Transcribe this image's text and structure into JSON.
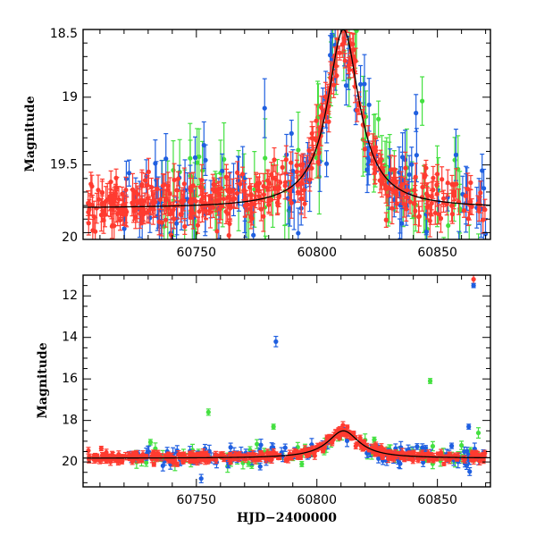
{
  "figure": {
    "colors": {
      "red": "#ff3b30",
      "blue": "#1f5fe0",
      "green": "#44e040",
      "model": "#000000"
    }
  },
  "chart_data": [
    {
      "type": "scatter",
      "panel": "top",
      "title": "",
      "xlabel": "",
      "ylabel": "Magnitude",
      "xlim": [
        60703,
        60872
      ],
      "ylim": [
        20.05,
        18.5
      ],
      "y_inverted": true,
      "xticks": [
        "60750",
        "60800",
        "60850"
      ],
      "yticks": [
        "18.5",
        "19",
        "19.5",
        "20"
      ],
      "series": [
        {
          "color": "red",
          "n_points": 420,
          "x_range": [
            60705,
            60870
          ],
          "baseline_mag": 19.8,
          "peak_mag": 18.55,
          "peak_x": 60811,
          "err": 0.08
        },
        {
          "color": "blue",
          "n_points": 120,
          "x_range": [
            60720,
            60870
          ],
          "baseline_mag": 19.8,
          "peak_mag": 18.55,
          "peak_x": 60811,
          "err": 0.15
        },
        {
          "color": "green",
          "n_points": 90,
          "x_range": [
            60725,
            60870
          ],
          "baseline_mag": 19.8,
          "peak_mag": 18.6,
          "peak_x": 60811,
          "err": 0.2
        }
      ],
      "model": {
        "type": "line",
        "baseline_mag": 19.82,
        "peak_mag": 18.5,
        "peak_x": 60811,
        "width": 8
      }
    },
    {
      "type": "scatter",
      "panel": "bottom",
      "title": "",
      "xlabel": "HJD−2400000",
      "ylabel": "Magnitude",
      "xlim": [
        60703,
        60872
      ],
      "ylim": [
        21.2,
        11.0
      ],
      "y_inverted": true,
      "xticks": [
        "60750",
        "60800",
        "60850"
      ],
      "yticks": [
        "12",
        "14",
        "16",
        "18",
        "20"
      ],
      "series": [
        {
          "color": "red",
          "n_points": 420,
          "x_range": [
            60705,
            60870
          ],
          "baseline_mag": 19.8,
          "peak_mag": 18.55,
          "peak_x": 60811,
          "err": 0.12
        },
        {
          "color": "blue",
          "n_points": 120,
          "x_range": [
            60720,
            60870
          ],
          "baseline_mag": 19.8,
          "peak_mag": 18.55,
          "peak_x": 60811,
          "err": 0.2
        },
        {
          "color": "green",
          "n_points": 90,
          "x_range": [
            60725,
            60870
          ],
          "baseline_mag": 19.8,
          "peak_mag": 18.6,
          "peak_x": 60811,
          "err": 0.2
        }
      ],
      "outliers": [
        {
          "color": "blue",
          "x": 60783,
          "y": 14.2,
          "err": 0.25
        },
        {
          "color": "green",
          "x": 60847,
          "y": 16.1,
          "err": 0.12
        },
        {
          "color": "green",
          "x": 60755,
          "y": 17.6,
          "err": 0.15
        },
        {
          "color": "green",
          "x": 60782,
          "y": 18.3,
          "err": 0.12
        },
        {
          "color": "blue",
          "x": 60752,
          "y": 20.8,
          "err": 0.2
        },
        {
          "color": "red",
          "x": 60865,
          "y": 11.2,
          "err": 0.2
        },
        {
          "color": "blue",
          "x": 60865,
          "y": 11.5,
          "err": 0.1
        },
        {
          "color": "blue",
          "x": 60863,
          "y": 18.3,
          "err": 0.12
        },
        {
          "color": "green",
          "x": 60867,
          "y": 18.6,
          "err": 0.25
        },
        {
          "color": "green",
          "x": 60860,
          "y": 19.2,
          "err": 0.2
        }
      ],
      "model": {
        "type": "line",
        "baseline_mag": 19.82,
        "peak_mag": 18.5,
        "peak_x": 60811,
        "width": 8
      }
    }
  ]
}
